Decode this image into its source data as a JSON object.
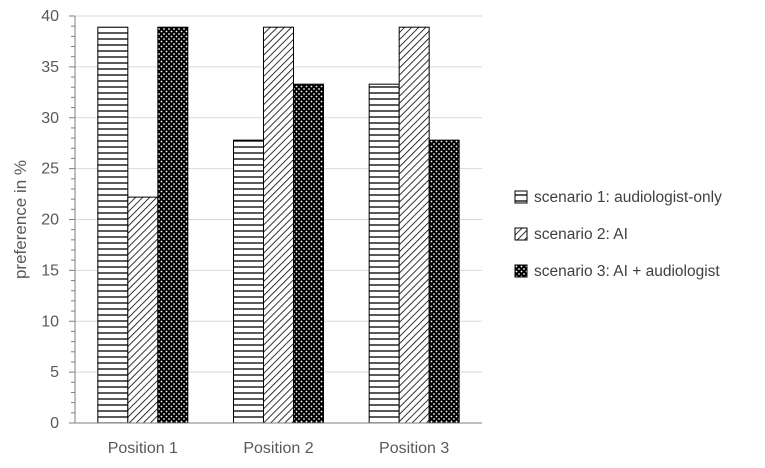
{
  "chart_data": {
    "type": "bar",
    "categories": [
      "Position 1",
      "Position 2",
      "Position 3"
    ],
    "series": [
      {
        "name": "scenario 1: audiologist-only",
        "values": [
          38.9,
          27.8,
          33.3
        ],
        "pattern": "horizontal-lines"
      },
      {
        "name": "scenario 2: AI",
        "values": [
          22.2,
          38.9,
          38.9
        ],
        "pattern": "diagonal-lines"
      },
      {
        "name": "scenario 3: AI + audiologist",
        "values": [
          38.9,
          33.3,
          27.8
        ],
        "pattern": "dotted-dark"
      }
    ],
    "ylabel": "preference in %",
    "ylim": [
      0,
      40
    ],
    "yticks": [
      0,
      5,
      10,
      15,
      20,
      25,
      30,
      35,
      40
    ],
    "grid": true,
    "legend_position": "right",
    "colors": {
      "bar_stroke": "#000000",
      "grid": "#d9d9d9",
      "axis": "#7f7f7f",
      "text": "#595959"
    }
  }
}
